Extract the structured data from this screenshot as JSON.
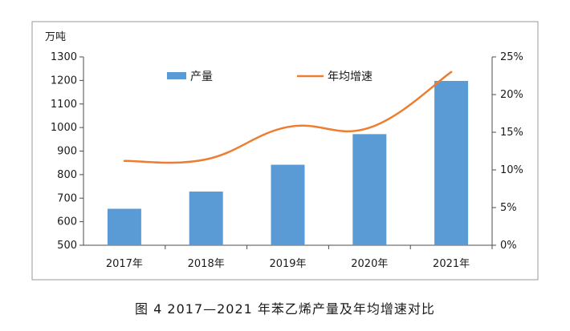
{
  "caption": "图 4  2017—2021 年苯乙烯产量及年均增速对比",
  "chart_data": {
    "type": "bar",
    "categories": [
      "2017年",
      "2018年",
      "2019年",
      "2020年",
      "2021年"
    ],
    "series": [
      {
        "name": "产量",
        "type": "bar",
        "axis": "left",
        "color": "#5b9bd5",
        "values": [
          655,
          728,
          842,
          972,
          1198
        ]
      },
      {
        "name": "年均增速",
        "type": "line",
        "axis": "right",
        "color": "#ed7d31",
        "values": [
          0.112,
          0.114,
          0.157,
          0.156,
          0.23
        ]
      }
    ],
    "ylabel": "万吨",
    "ylim": [
      500,
      1300
    ],
    "yticks": [
      "500",
      "600",
      "700",
      "800",
      "900",
      "1000",
      "1100",
      "1200",
      "1300"
    ],
    "y2lim": [
      0,
      0.25
    ],
    "y2ticks": [
      "0%",
      "5%",
      "10%",
      "15%",
      "20%",
      "25%"
    ],
    "legend_position": "top-center",
    "grid": false
  }
}
